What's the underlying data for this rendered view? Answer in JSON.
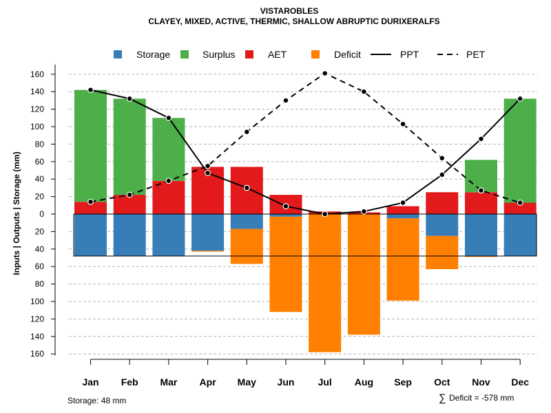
{
  "chart_data": {
    "type": "bar",
    "title": "VISTAROBLES",
    "subtitle": "CLAYEY, MIXED, ACTIVE, THERMIC, SHALLOW ABRUPTIC DURIXERALFS",
    "ylabel": "Inputs | Outputs | Storage    (mm)",
    "ylim": [
      -160,
      160
    ],
    "yticks": [
      160,
      140,
      120,
      100,
      80,
      60,
      40,
      20,
      0,
      20,
      40,
      60,
      80,
      100,
      120,
      140,
      160
    ],
    "categories": [
      "Jan",
      "Feb",
      "Mar",
      "Apr",
      "May",
      "Jun",
      "Jul",
      "Aug",
      "Sep",
      "Oct",
      "Nov",
      "Dec"
    ],
    "legend": [
      "Storage",
      "Surplus",
      "AET",
      "Deficit",
      "PPT",
      "PET"
    ],
    "series": [
      {
        "name": "AET",
        "color": "#e31a1c",
        "values": [
          14,
          22,
          38,
          54,
          54,
          22,
          3,
          2,
          9,
          25,
          25,
          13
        ]
      },
      {
        "name": "Surplus",
        "color": "#4daf4a",
        "values": [
          128,
          110,
          72,
          0,
          0,
          0,
          0,
          0,
          0,
          0,
          37,
          119
        ]
      },
      {
        "name": "Storage",
        "color": "#377eb8",
        "values": [
          -48,
          -48,
          -48,
          -42,
          -17,
          -3,
          0,
          0,
          -5,
          -25,
          -48,
          -48
        ]
      },
      {
        "name": "Deficit",
        "color": "#ff7f00",
        "values": [
          0,
          0,
          0,
          -1,
          -40,
          -109,
          -158,
          -138,
          -94,
          -38,
          -1,
          0
        ]
      },
      {
        "name": "PPT",
        "style": "solid",
        "values": [
          142,
          132,
          110,
          47,
          30,
          9,
          0,
          3,
          13,
          45,
          86,
          132
        ]
      },
      {
        "name": "PET",
        "style": "dashed",
        "values": [
          14,
          22,
          38,
          55,
          94,
          130,
          161,
          140,
          103,
          64,
          27,
          13
        ]
      }
    ],
    "storage_capacity": -48
  },
  "footer": {
    "storage_text": "Storage: 48 mm",
    "deficit_symbol": "∑",
    "deficit_text": "Deficit = -578 mm"
  }
}
